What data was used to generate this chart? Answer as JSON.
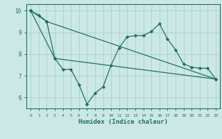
{
  "xlabel": "Humidex (Indice chaleur)",
  "xlim": [
    -0.5,
    23.5
  ],
  "ylim": [
    5.5,
    10.3
  ],
  "xticks": [
    0,
    1,
    2,
    3,
    4,
    5,
    6,
    7,
    8,
    9,
    10,
    11,
    12,
    13,
    14,
    15,
    16,
    17,
    18,
    19,
    20,
    21,
    22,
    23
  ],
  "yticks": [
    6,
    7,
    8,
    9,
    10
  ],
  "bg_color": "#cce8e5",
  "grid_color": "#aad4cf",
  "line_color": "#1e6e65",
  "line1_x": [
    0,
    1,
    2,
    3,
    4,
    5,
    6,
    7,
    8,
    9,
    10,
    11,
    12,
    13,
    14,
    15,
    16,
    17,
    18,
    19,
    20,
    21,
    22,
    23
  ],
  "line1_y": [
    10.0,
    9.8,
    9.5,
    7.8,
    7.3,
    7.3,
    6.6,
    5.7,
    6.2,
    6.5,
    7.5,
    8.3,
    8.8,
    8.85,
    8.85,
    9.05,
    9.4,
    8.7,
    8.2,
    7.55,
    7.4,
    7.35,
    7.35,
    6.85
  ],
  "line2_x": [
    0,
    2,
    23
  ],
  "line2_y": [
    10.0,
    9.5,
    6.85
  ],
  "line3_x": [
    0,
    3,
    23
  ],
  "line3_y": [
    10.0,
    7.8,
    6.85
  ]
}
